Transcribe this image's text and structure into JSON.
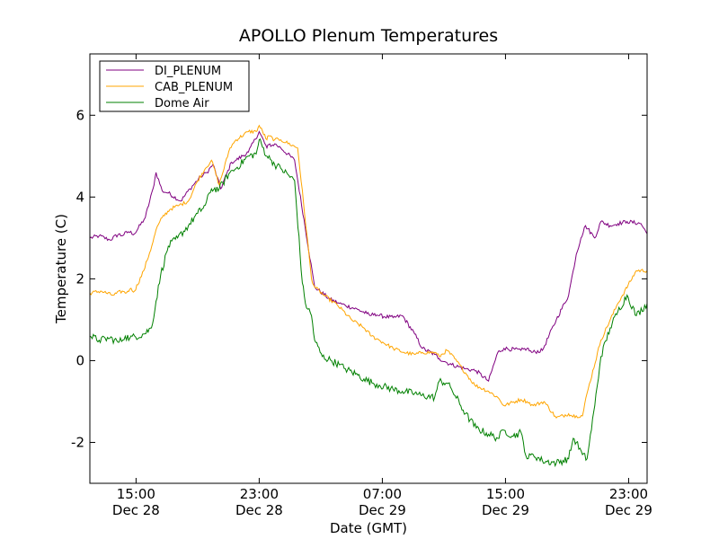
{
  "chart_data": {
    "type": "line",
    "title": "APOLLO Plenum Temperatures",
    "xlabel": "Date (GMT)",
    "ylabel": "Temperature (C)",
    "xlim": [
      11.0,
      47.2
    ],
    "ylim": [
      -3.0,
      7.5
    ],
    "x_unit": "hours since 2008-12-28 00:00 GMT (approx.)",
    "x_ticks": [
      {
        "x": 14,
        "label_time": "15:00",
        "label_date": "Dec 28"
      },
      {
        "x": 22,
        "label_time": "23:00",
        "label_date": "Dec 28"
      },
      {
        "x": 30,
        "label_time": "07:00",
        "label_date": "Dec 29"
      },
      {
        "x": 38,
        "label_time": "15:00",
        "label_date": "Dec 29"
      },
      {
        "x": 46,
        "label_time": "23:00",
        "label_date": "Dec 29"
      }
    ],
    "y_ticks": [
      {
        "y": -2,
        "label": "-2"
      },
      {
        "y": 0,
        "label": "0"
      },
      {
        "y": 2,
        "label": "2"
      },
      {
        "y": 4,
        "label": "4"
      },
      {
        "y": 6,
        "label": "6"
      }
    ],
    "legend_position": "top-left",
    "series": [
      {
        "name": "DI_PLENUM",
        "color": "#800080",
        "x": [
          11.0,
          11.6,
          12.3,
          12.9,
          13.0,
          13.5,
          13.9,
          14.6,
          15.1,
          15.3,
          15.7,
          16.1,
          16.9,
          17.5,
          18.2,
          18.6,
          19.0,
          19.5,
          20.2,
          20.5,
          21.3,
          22.0,
          22.5,
          22.7,
          22.8,
          23.0,
          23.4,
          24.3,
          25.6,
          26.6,
          27.2,
          27.6,
          28.4,
          29.0,
          29.2,
          29.5,
          29.8,
          30.7,
          31.3,
          32.1,
          32.6,
          33.4,
          33.7,
          34.2,
          34.5,
          35.4,
          36.1,
          36.9,
          37.5,
          37.9,
          39.0,
          39.4,
          39.7,
          40.4,
          41.3,
          42.1,
          42.4,
          42.6,
          42.9,
          43.2,
          43.8,
          44.2,
          44.8,
          45.3,
          45.9,
          46.8,
          47.2
        ],
        "y": [
          3.0,
          3.05,
          2.95,
          3.1,
          3.05,
          3.15,
          3.1,
          3.5,
          4.2,
          4.6,
          4.15,
          4.1,
          3.9,
          4.2,
          4.5,
          4.6,
          4.8,
          4.2,
          4.85,
          4.9,
          5.1,
          5.6,
          5.2,
          5.3,
          5.25,
          5.3,
          5.2,
          4.9,
          1.8,
          1.5,
          1.4,
          1.35,
          1.25,
          1.15,
          1.1,
          1.15,
          1.1,
          1.05,
          1.1,
          0.65,
          0.3,
          0.15,
          0.05,
          -0.05,
          -0.1,
          -0.2,
          -0.25,
          -0.5,
          0.2,
          0.3,
          0.25,
          0.3,
          0.2,
          0.25,
          1.0,
          1.6,
          2.2,
          2.6,
          3.0,
          3.3,
          3.0,
          3.4,
          3.3,
          3.35,
          3.4,
          3.35,
          3.1
        ]
      },
      {
        "name": "CAB_PLENUM",
        "color": "#ffa500",
        "x": [
          11.0,
          11.7,
          12.5,
          13.1,
          13.3,
          13.6,
          13.9,
          14.5,
          15.1,
          15.3,
          15.7,
          16.2,
          16.8,
          17.4,
          18.0,
          18.5,
          18.9,
          19.4,
          20.1,
          20.5,
          21.3,
          21.8,
          22.0,
          22.5,
          22.6,
          23.0,
          23.4,
          24.5,
          25.4,
          25.6,
          26.2,
          27.1,
          28.0,
          28.8,
          29.3,
          29.8,
          30.7,
          31.4,
          32.1,
          32.6,
          33.4,
          33.7,
          34.2,
          34.7,
          35.4,
          36.0,
          36.9,
          37.5,
          37.9,
          39.0,
          39.4,
          39.8,
          40.5,
          41.3,
          42.1,
          42.3,
          42.6,
          43.0,
          43.3,
          44.2,
          45.3,
          46.5,
          47.2
        ],
        "y": [
          1.65,
          1.7,
          1.6,
          1.7,
          1.65,
          1.75,
          1.7,
          2.2,
          2.9,
          3.2,
          3.5,
          3.7,
          3.8,
          3.9,
          4.4,
          4.7,
          4.9,
          4.3,
          5.2,
          5.4,
          5.6,
          5.6,
          5.75,
          5.4,
          5.5,
          5.4,
          5.4,
          5.2,
          2.0,
          1.8,
          1.6,
          1.35,
          1.0,
          0.8,
          0.6,
          0.5,
          0.3,
          0.2,
          0.15,
          0.2,
          0.2,
          0.1,
          0.25,
          0.05,
          -0.3,
          -0.6,
          -0.75,
          -0.9,
          -1.1,
          -0.95,
          -1.0,
          -1.1,
          -1.0,
          -1.4,
          -1.3,
          -1.35,
          -1.35,
          -1.35,
          -0.8,
          0.5,
          1.4,
          2.2,
          2.2
        ]
      },
      {
        "name": "Dome Air",
        "color": "#008000",
        "x": [
          11.0,
          11.6,
          12.3,
          12.9,
          13.3,
          13.6,
          14.5,
          15.0,
          15.6,
          16.1,
          16.7,
          17.4,
          18.0,
          18.5,
          18.9,
          19.4,
          20.1,
          20.5,
          21.3,
          21.8,
          22.0,
          22.5,
          22.8,
          23.0,
          23.4,
          24.3,
          24.8,
          25.0,
          25.4,
          25.6,
          26.1,
          26.7,
          27.2,
          27.6,
          28.4,
          28.8,
          29.4,
          29.8,
          30.7,
          31.3,
          32.1,
          32.5,
          33.4,
          33.7,
          34.2,
          34.5,
          35.4,
          36.1,
          36.9,
          37.5,
          37.9,
          38.5,
          39.0,
          39.4,
          39.8,
          40.4,
          41.3,
          42.1,
          42.4,
          42.6,
          43.0,
          43.3,
          43.8,
          44.2,
          44.8,
          45.3,
          45.9,
          46.5,
          47.2
        ],
        "y": [
          0.6,
          0.5,
          0.55,
          0.45,
          0.6,
          0.55,
          0.65,
          0.8,
          2.1,
          2.8,
          3.0,
          3.3,
          3.6,
          3.8,
          4.2,
          4.2,
          4.6,
          4.7,
          5.0,
          5.05,
          5.4,
          5.0,
          4.9,
          4.8,
          4.7,
          4.4,
          1.9,
          1.4,
          1.1,
          0.5,
          0.1,
          0.0,
          -0.1,
          -0.2,
          -0.35,
          -0.45,
          -0.55,
          -0.6,
          -0.7,
          -0.75,
          -0.8,
          -0.85,
          -0.9,
          -0.5,
          -0.55,
          -0.7,
          -1.3,
          -1.65,
          -1.8,
          -1.9,
          -1.7,
          -1.85,
          -1.75,
          -2.4,
          -2.3,
          -2.45,
          -2.5,
          -2.4,
          -1.9,
          -2.0,
          -2.3,
          -2.4,
          -1.1,
          0.1,
          0.8,
          1.2,
          1.6,
          1.1,
          1.4
        ]
      }
    ]
  }
}
